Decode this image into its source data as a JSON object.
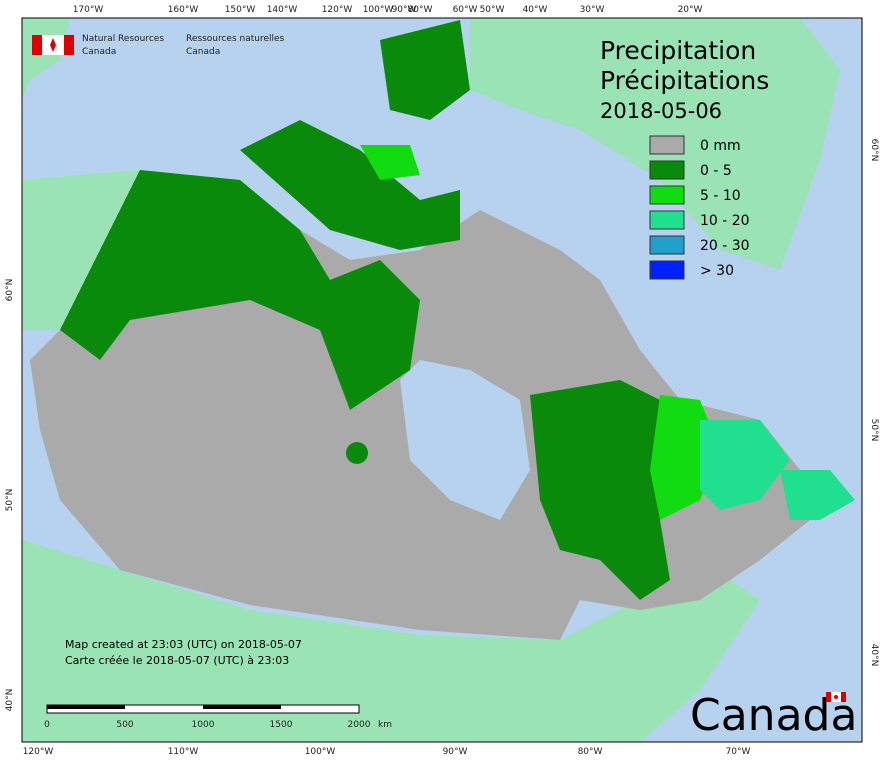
{
  "header": {
    "agency_en": [
      "Natural Resources",
      "Canada"
    ],
    "agency_fr": [
      "Ressources naturelles",
      "Canada"
    ]
  },
  "title": {
    "en": "Precipitation",
    "fr": "Précipitations",
    "date": "2018-05-06"
  },
  "legend": [
    {
      "label": "0 mm",
      "color": "#aaaaaa"
    },
    {
      "label": "0 - 5",
      "color": "#0a8a0a"
    },
    {
      "label": "5 - 10",
      "color": "#10dc10"
    },
    {
      "label": "10 - 20",
      "color": "#20e090"
    },
    {
      "label": "20 - 30",
      "color": "#20a0c8"
    },
    {
      "label": "> 30",
      "color": "#0020ff"
    }
  ],
  "graticule": {
    "top": [
      "170°W",
      "160°W",
      "150°W",
      "140°W",
      "120°W",
      "100°W",
      "90°W",
      "80°W",
      "60°W",
      "50°W",
      "40°W",
      "30°W",
      "20°W"
    ],
    "bottom": [
      "120°W",
      "110°W",
      "100°W",
      "90°W",
      "80°W",
      "70°W"
    ],
    "left": [
      "60°N",
      "50°N",
      "40°N"
    ],
    "right": [
      "60°N",
      "50°N",
      "40°N"
    ]
  },
  "notes": [
    "Map created at 23:03 (UTC) on 2018-05-07",
    "Carte créée le 2018-05-07 (UTC) à 23:03"
  ],
  "scale_bar": {
    "labels": [
      "0",
      "500",
      "1000",
      "1500",
      "2000"
    ],
    "unit": "km"
  },
  "wordmark": "Canada"
}
